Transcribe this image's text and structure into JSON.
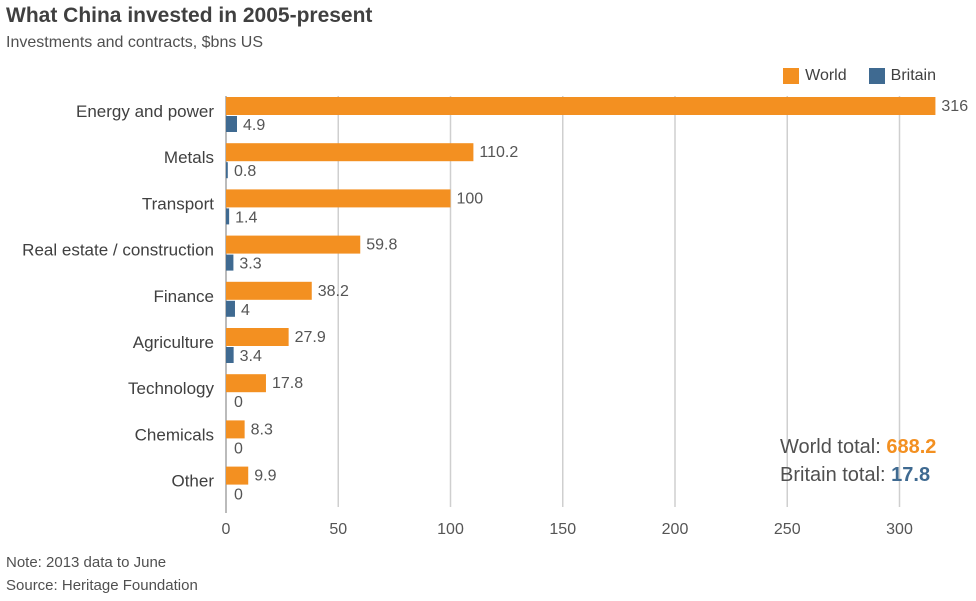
{
  "title": "What China invested in 2005-present",
  "subtitle": "Investments and contracts, $bns US",
  "legend": {
    "world_label": "World",
    "britain_label": "Britain",
    "world_color": "#f39021",
    "britain_color": "#3f6a91"
  },
  "totals": {
    "world_label": "World total:",
    "world_value": "688.2",
    "britain_label": "Britain total:",
    "britain_value": "17.8"
  },
  "footer": {
    "note": "Note: 2013 data to June",
    "source": "Source: Heritage Foundation"
  },
  "chart_data": {
    "type": "bar",
    "orientation": "horizontal",
    "title": "What China invested in 2005-present",
    "subtitle": "Investments and contracts, $bns US",
    "categories": [
      "Energy and power",
      "Metals",
      "Transport",
      "Real estate / construction",
      "Finance",
      "Agriculture",
      "Technology",
      "Chemicals",
      "Other"
    ],
    "series": [
      {
        "name": "World",
        "color": "#f39021",
        "values": [
          316,
          110.2,
          100,
          59.8,
          38.2,
          27.9,
          17.8,
          8.3,
          9.9
        ]
      },
      {
        "name": "Britain",
        "color": "#3f6a91",
        "values": [
          4.9,
          0.8,
          1.4,
          3.3,
          4,
          3.4,
          0,
          0,
          0
        ]
      }
    ],
    "xticks": [
      0,
      50,
      100,
      150,
      200,
      250,
      300
    ],
    "xlim": [
      0,
      316
    ],
    "grid": true,
    "legend_position": "top-right"
  }
}
